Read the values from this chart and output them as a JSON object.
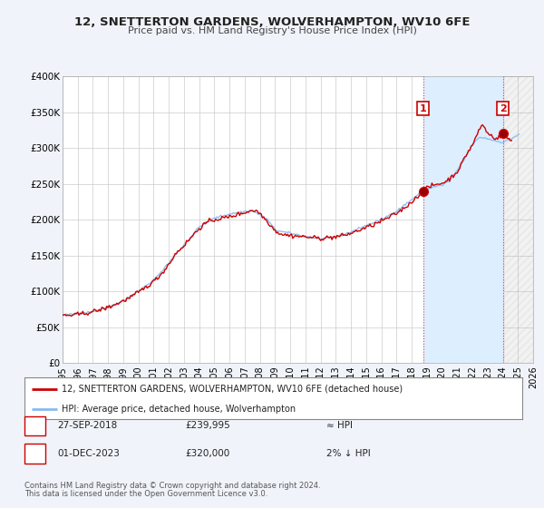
{
  "title": "12, SNETTERTON GARDENS, WOLVERHAMPTON, WV10 6FE",
  "subtitle": "Price paid vs. HM Land Registry's House Price Index (HPI)",
  "bg_color": "#f0f4fa",
  "plot_bg_color": "#ffffff",
  "grid_color": "#cccccc",
  "line_color": "#cc0000",
  "hpi_color": "#88bbee",
  "shade_color": "#ddeeff",
  "ylim": [
    0,
    400000
  ],
  "yticks": [
    0,
    50000,
    100000,
    150000,
    200000,
    250000,
    300000,
    350000,
    400000
  ],
  "ytick_labels": [
    "£0",
    "£50K",
    "£100K",
    "£150K",
    "£200K",
    "£250K",
    "£300K",
    "£350K",
    "£400K"
  ],
  "xlim_start": 1995,
  "xlim_end": 2026,
  "marker1_year": 2018.75,
  "marker1_value": 239995,
  "marker1_label": "1",
  "marker1_date": "27-SEP-2018",
  "marker1_price": "£239,995",
  "marker1_hpi": "≈ HPI",
  "marker2_year": 2024.0,
  "marker2_value": 320000,
  "marker2_label": "2",
  "marker2_date": "01-DEC-2023",
  "marker2_price": "£320,000",
  "marker2_hpi": "2% ↓ HPI",
  "legend_line1": "12, SNETTERTON GARDENS, WOLVERHAMPTON, WV10 6FE (detached house)",
  "legend_line2": "HPI: Average price, detached house, Wolverhampton",
  "footnote1": "Contains HM Land Registry data © Crown copyright and database right 2024.",
  "footnote2": "This data is licensed under the Open Government Licence v3.0."
}
